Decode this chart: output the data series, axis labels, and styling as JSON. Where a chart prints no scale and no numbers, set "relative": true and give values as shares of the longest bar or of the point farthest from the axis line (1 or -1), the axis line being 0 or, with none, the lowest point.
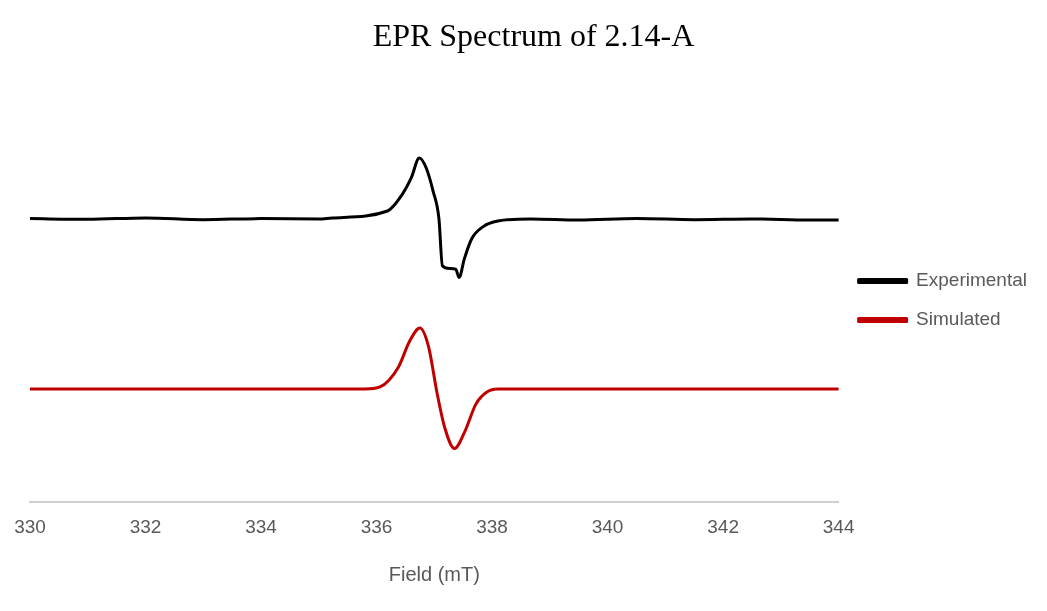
{
  "chart_data": {
    "type": "line",
    "title": "EPR Spectrum of 2.14-A",
    "xlabel": "Field (mT)",
    "relative": true,
    "xlim": [
      330,
      344
    ],
    "xticks": [
      330,
      332,
      334,
      336,
      338,
      340,
      342,
      344
    ],
    "grid": false,
    "legend": "right",
    "marker": "none",
    "line_style": "solid",
    "series": [
      {
        "name": "Experimental",
        "color": "#000000",
        "x": [
          330,
          331,
          332,
          333,
          334,
          335,
          335.23,
          336.19,
          336.44,
          336.6,
          336.74,
          336.86,
          336.98,
          337.08,
          337.14,
          337.27,
          337.37,
          337.43,
          337.52,
          337.65,
          337.84,
          338.1,
          338.67,
          339.5,
          340.5,
          341.5,
          342.5,
          343.5,
          344
        ],
        "values": [
          0.824,
          0.822,
          0.826,
          0.821,
          0.824,
          0.823,
          0.826,
          0.846,
          0.893,
          0.942,
          1.0,
          0.971,
          0.903,
          0.824,
          0.687,
          0.679,
          0.677,
          0.653,
          0.707,
          0.766,
          0.8,
          0.817,
          0.823,
          0.82,
          0.824,
          0.821,
          0.823,
          0.82,
          0.82
        ]
      },
      {
        "name": "Simulated",
        "color": "#c00000",
        "x": [
          330,
          335.8,
          336.06,
          336.38,
          336.57,
          336.75,
          336.9,
          337.05,
          337.18,
          337.35,
          337.52,
          337.72,
          337.91,
          338.1,
          344
        ],
        "values": [
          0.329,
          0.329,
          0.335,
          0.393,
          0.467,
          0.506,
          0.452,
          0.315,
          0.217,
          0.156,
          0.202,
          0.285,
          0.32,
          0.329,
          0.329
        ]
      }
    ]
  }
}
